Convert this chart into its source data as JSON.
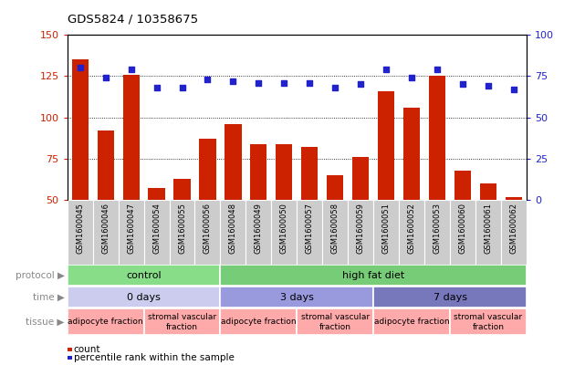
{
  "title": "GDS5824 / 10358675",
  "samples": [
    "GSM1600045",
    "GSM1600046",
    "GSM1600047",
    "GSM1600054",
    "GSM1600055",
    "GSM1600056",
    "GSM1600048",
    "GSM1600049",
    "GSM1600050",
    "GSM1600057",
    "GSM1600058",
    "GSM1600059",
    "GSM1600051",
    "GSM1600052",
    "GSM1600053",
    "GSM1600060",
    "GSM1600061",
    "GSM1600062"
  ],
  "counts": [
    135,
    92,
    126,
    57,
    63,
    87,
    96,
    84,
    84,
    82,
    65,
    76,
    116,
    106,
    125,
    68,
    60,
    52
  ],
  "percentiles": [
    80,
    74,
    79,
    68,
    68,
    73,
    72,
    71,
    71,
    71,
    68,
    70,
    79,
    74,
    79,
    70,
    69,
    67
  ],
  "bar_color": "#cc2200",
  "dot_color": "#2222cc",
  "ylim_left": [
    50,
    150
  ],
  "ylim_right": [
    0,
    100
  ],
  "yticks_left": [
    50,
    75,
    100,
    125,
    150
  ],
  "yticks_right": [
    0,
    25,
    50,
    75,
    100
  ],
  "xtick_bg_color": "#cccccc",
  "protocol_labels": [
    {
      "text": "control",
      "start": 0,
      "end": 6,
      "color": "#88dd88"
    },
    {
      "text": "high fat diet",
      "start": 6,
      "end": 18,
      "color": "#77cc77"
    }
  ],
  "time_labels": [
    {
      "text": "0 days",
      "start": 0,
      "end": 6,
      "color": "#ccccee"
    },
    {
      "text": "3 days",
      "start": 6,
      "end": 12,
      "color": "#9999dd"
    },
    {
      "text": "7 days",
      "start": 12,
      "end": 18,
      "color": "#7777bb"
    }
  ],
  "tissue_labels": [
    {
      "text": "adipocyte fraction",
      "start": 0,
      "end": 3,
      "color": "#ffaaaa"
    },
    {
      "text": "stromal vascular\nfraction",
      "start": 3,
      "end": 6,
      "color": "#ffaaaa"
    },
    {
      "text": "adipocyte fraction",
      "start": 6,
      "end": 9,
      "color": "#ffaaaa"
    },
    {
      "text": "stromal vascular\nfraction",
      "start": 9,
      "end": 12,
      "color": "#ffaaaa"
    },
    {
      "text": "adipocyte fraction",
      "start": 12,
      "end": 15,
      "color": "#ffaaaa"
    },
    {
      "text": "stromal vascular\nfraction",
      "start": 15,
      "end": 18,
      "color": "#ffaaaa"
    }
  ],
  "legend_count_label": "count",
  "legend_pct_label": "percentile rank within the sample",
  "axis_color_left": "#cc2200",
  "axis_color_right": "#2222cc",
  "grid_color": "#000000",
  "bg_color": "#ffffff",
  "plot_bg_color": "#ffffff",
  "row_label_color": "#888888",
  "row_arrow": "▶"
}
